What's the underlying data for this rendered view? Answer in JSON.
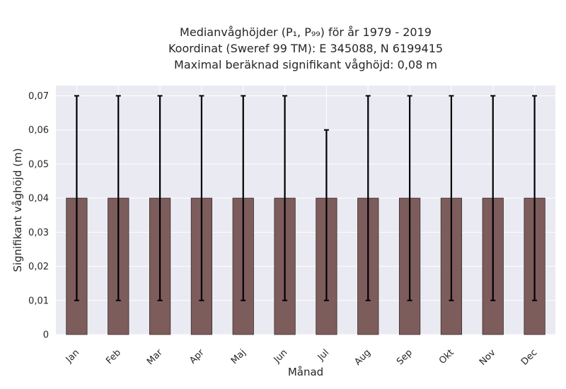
{
  "chart_data": {
    "type": "bar",
    "title_lines": [
      "Medianvåghöjder (P₁, P₉₉) för år 1979 - 2019",
      "Koordinat (Sweref 99 TM): E 345088, N 6199415",
      "Maximal beräknad signifikant våghöjd: 0,08 m"
    ],
    "xlabel": "Månad",
    "ylabel": "Signifikant våghöjd (m)",
    "categories": [
      "Jan",
      "Feb",
      "Mar",
      "Apr",
      "Maj",
      "Jun",
      "Jul",
      "Aug",
      "Sep",
      "Okt",
      "Nov",
      "Dec"
    ],
    "values": [
      0.04,
      0.04,
      0.04,
      0.04,
      0.04,
      0.04,
      0.04,
      0.04,
      0.04,
      0.04,
      0.04,
      0.04
    ],
    "error_low": [
      0.01,
      0.01,
      0.01,
      0.01,
      0.01,
      0.01,
      0.01,
      0.01,
      0.01,
      0.01,
      0.01,
      0.01
    ],
    "error_high": [
      0.07,
      0.07,
      0.07,
      0.07,
      0.07,
      0.07,
      0.06,
      0.07,
      0.07,
      0.07,
      0.07,
      0.07
    ],
    "ylim": [
      0,
      0.073
    ],
    "yticks": [
      0,
      0.01,
      0.02,
      0.03,
      0.04,
      0.05,
      0.06,
      0.07
    ],
    "ytick_labels": [
      "0",
      "0,01",
      "0,02",
      "0,03",
      "0,04",
      "0,05",
      "0,06",
      "0,07"
    ],
    "grid": true,
    "colors": {
      "bar": "#7d5c5c",
      "bar_edge": "#3a2a2a",
      "plot_bg": "#eaeaf2",
      "grid": "#ffffff",
      "error_bar": "#000000"
    }
  }
}
